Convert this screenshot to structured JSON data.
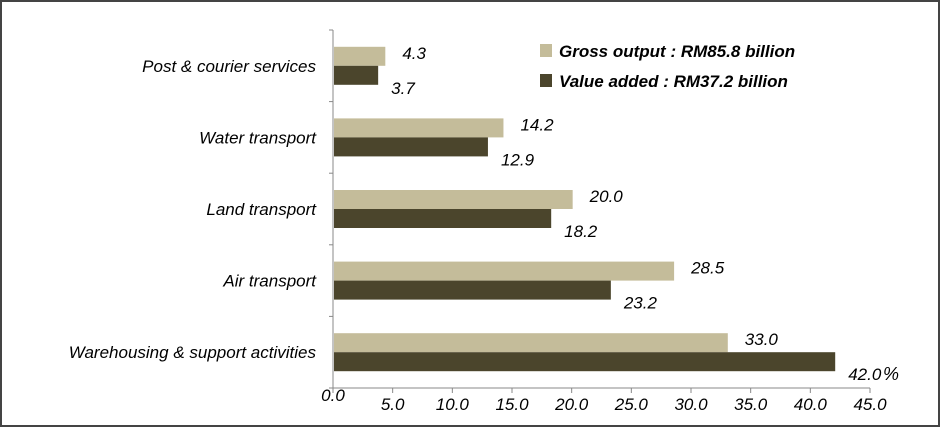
{
  "chart_data": {
    "type": "bar",
    "orientation": "horizontal",
    "title": "",
    "xlabel": "%",
    "ylabel": "",
    "xlim": [
      0,
      45
    ],
    "xticks": [
      "0.0",
      "5.0",
      "10.0",
      "15.0",
      "20.0",
      "25.0",
      "30.0",
      "35.0",
      "40.0",
      "45.0"
    ],
    "categories": [
      "Post & courier services",
      "Water transport",
      "Land transport",
      "Air transport",
      "Warehousing & support activities"
    ],
    "series": [
      {
        "name": "Gross output : RM85.8 billion",
        "color": "#c4bc9a",
        "values": [
          4.3,
          14.2,
          20.0,
          28.5,
          33.0
        ],
        "labels": [
          "4.3",
          "14.2",
          "20.0",
          "28.5",
          "33.0"
        ]
      },
      {
        "name": "Value added : RM37.2 billion",
        "color": "#4b452c",
        "values": [
          3.7,
          12.9,
          18.2,
          23.2,
          42.0
        ],
        "labels": [
          "3.7",
          "12.9",
          "18.2",
          "23.2",
          "42.0"
        ]
      }
    ],
    "grid": false,
    "legend_position": "top-right"
  }
}
